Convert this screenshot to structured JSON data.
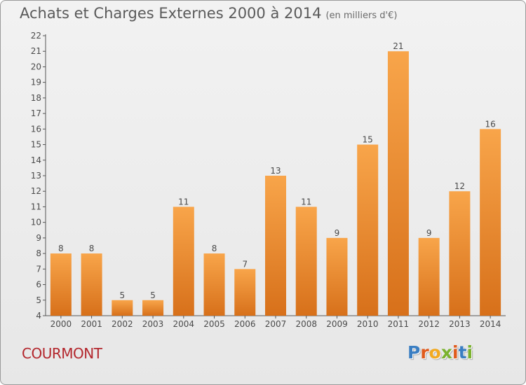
{
  "header": {
    "title": "Achats et Charges Externes 2000 à 2014",
    "subtitle": "(en milliers d'€)"
  },
  "footer": {
    "commune": "COURMONT",
    "logo_text": "Proxiti"
  },
  "colors": {
    "bar_light": "#f8a54a",
    "bar_dark": "#d7701a",
    "commune": "#b3262c",
    "logo_letters": [
      "#3a7ec2",
      "#e05a1c",
      "#f2a91f",
      "#7ab22e",
      "#e05a1c",
      "#3a7ec2",
      "#7ab22e"
    ]
  },
  "chart_data": {
    "type": "bar",
    "categories": [
      "2000",
      "2001",
      "2002",
      "2003",
      "2004",
      "2005",
      "2006",
      "2007",
      "2008",
      "2009",
      "2010",
      "2011",
      "2012",
      "2013",
      "2014"
    ],
    "values": [
      8,
      8,
      5,
      5,
      11,
      8,
      7,
      13,
      11,
      9,
      15,
      21,
      9,
      12,
      16
    ],
    "ylim": [
      4,
      22
    ],
    "yticks": [
      4,
      5,
      6,
      7,
      8,
      9,
      10,
      11,
      12,
      13,
      14,
      15,
      16,
      17,
      18,
      19,
      20,
      21,
      22
    ],
    "grid": false,
    "title": "Achats et Charges Externes 2000 à 2014",
    "xlabel": "",
    "ylabel": ""
  }
}
